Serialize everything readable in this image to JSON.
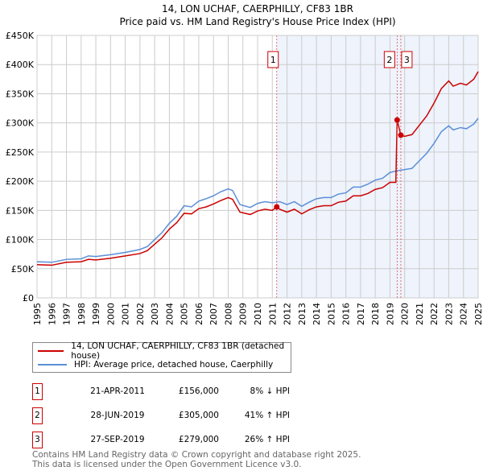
{
  "chart_data": {
    "type": "line",
    "title": "14, LON UCHAF, CAERPHILLY, CF83 1BR",
    "subtitle": "Price paid vs. HM Land Registry's House Price Index (HPI)",
    "xlim": [
      1995,
      2025
    ],
    "ylim": [
      0,
      450000
    ],
    "y_ticks": [
      0,
      50000,
      100000,
      150000,
      200000,
      250000,
      300000,
      350000,
      400000,
      450000
    ],
    "y_tick_labels": [
      "£0",
      "£50K",
      "£100K",
      "£150K",
      "£200K",
      "£250K",
      "£300K",
      "£350K",
      "£400K",
      "£450K"
    ],
    "x_tick_labels": [
      "1995",
      "1996",
      "1997",
      "1998",
      "1999",
      "2000",
      "2001",
      "2002",
      "2003",
      "2004",
      "2005",
      "2006",
      "2007",
      "2008",
      "2009",
      "2010",
      "2011",
      "2012",
      "2013",
      "2014",
      "2015",
      "2016",
      "2017",
      "2018",
      "2019",
      "2020",
      "2021",
      "2022",
      "2023",
      "2024",
      "2025"
    ],
    "grid": true,
    "shaded_range": [
      2011.3,
      2025
    ],
    "series": [
      {
        "name": "14, LON UCHAF, CAERPHILLY, CF83 1BR (detached house)",
        "color": "#cc0000",
        "x": [
          1995,
          1996,
          1997,
          1998,
          1998.5,
          1999,
          2000,
          2001,
          2002,
          2002.5,
          2003,
          2003.5,
          2004,
          2004.5,
          2005,
          2005.5,
          2006,
          2006.5,
          2007,
          2007.5,
          2008,
          2008.3,
          2008.8,
          2009.5,
          2010,
          2010.5,
          2011,
          2011.3,
          2011.5,
          2012,
          2012.5,
          2013,
          2013.5,
          2014,
          2014.5,
          2015,
          2015.5,
          2016,
          2016.5,
          2017,
          2017.5,
          2018,
          2018.5,
          2019,
          2019.4,
          2019.49,
          2019.74,
          2020,
          2020.5,
          2021,
          2021.5,
          2022,
          2022.5,
          2023,
          2023.3,
          2023.8,
          2024.2,
          2024.7,
          2025
        ],
        "values": [
          57,
          56,
          61,
          62,
          66,
          65,
          68,
          72,
          76,
          81,
          92,
          103,
          118,
          129,
          145,
          144,
          153,
          156,
          161,
          167,
          172,
          169,
          147,
          143,
          149,
          152,
          150,
          156,
          152,
          147,
          152,
          144,
          151,
          156,
          158,
          158,
          164,
          166,
          175,
          175,
          179,
          186,
          189,
          198,
          198,
          305,
          279,
          277,
          280,
          296,
          312,
          334,
          359,
          372,
          363,
          368,
          365,
          375,
          388
        ]
      },
      {
        "name": "HPI: Average price, detached house, Caerphilly",
        "color": "#5b8fd6",
        "x": [
          1995,
          1996,
          1997,
          1998,
          1998.5,
          1999,
          2000,
          2001,
          2002,
          2002.5,
          2003,
          2003.5,
          2004,
          2004.5,
          2005,
          2005.5,
          2006,
          2006.5,
          2007,
          2007.5,
          2008,
          2008.3,
          2008.8,
          2009.5,
          2010,
          2010.5,
          2011,
          2011.5,
          2012,
          2012.5,
          2013,
          2013.5,
          2014,
          2014.5,
          2015,
          2015.5,
          2016,
          2016.5,
          2017,
          2017.5,
          2018,
          2018.5,
          2019,
          2019.5,
          2020,
          2020.5,
          2021,
          2021.5,
          2022,
          2022.5,
          2023,
          2023.3,
          2023.8,
          2024.2,
          2024.7,
          2025
        ],
        "values": [
          62,
          61,
          66,
          67,
          72,
          71,
          74,
          78,
          83,
          88,
          100,
          112,
          128,
          140,
          158,
          156,
          166,
          170,
          175,
          182,
          187,
          184,
          160,
          155,
          162,
          165,
          163,
          165,
          160,
          165,
          157,
          164,
          170,
          172,
          172,
          178,
          180,
          190,
          190,
          195,
          202,
          205,
          215,
          218,
          220,
          222,
          235,
          248,
          265,
          285,
          295,
          288,
          292,
          290,
          298,
          308
        ]
      }
    ],
    "value_unit": "thousands GBP",
    "annotations": [
      {
        "label": "1",
        "x": 2011.3,
        "value": 156
      },
      {
        "label": "2",
        "x": 2019.49,
        "value": 305
      },
      {
        "label": "3",
        "x": 2019.74,
        "value": 279
      }
    ],
    "legend_placement": "below"
  },
  "table": [
    {
      "num": "1",
      "date": "21-APR-2011",
      "price": "£156,000",
      "hpi": "8% ↓ HPI"
    },
    {
      "num": "2",
      "date": "28-JUN-2019",
      "price": "£305,000",
      "hpi": "41% ↑ HPI"
    },
    {
      "num": "3",
      "date": "27-SEP-2019",
      "price": "£279,000",
      "hpi": "26% ↑ HPI"
    }
  ],
  "footer": {
    "line1": "Contains HM Land Registry data © Crown copyright and database right 2025.",
    "line2": "This data is licensed under the Open Government Licence v3.0."
  }
}
